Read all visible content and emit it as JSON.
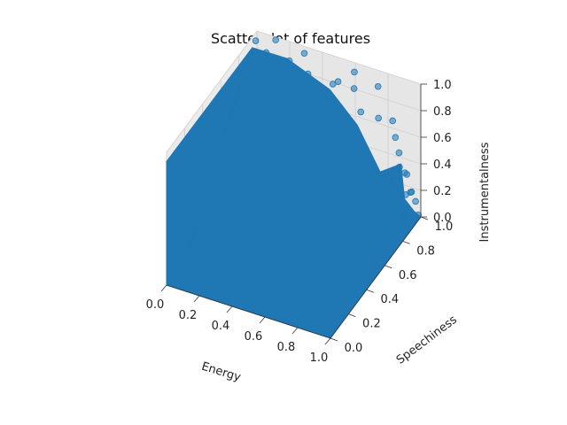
{
  "chart_data": {
    "type": "scatter",
    "projection": "3d",
    "title": "Scatterplot of features",
    "xlabel": "Energy",
    "ylabel": "Speechiness",
    "zlabel": "Instrumentalness",
    "xlim": [
      0,
      1
    ],
    "ylim": [
      0,
      1
    ],
    "zlim": [
      0,
      1
    ],
    "xticks": [
      "0.0",
      "0.2",
      "0.4",
      "0.6",
      "0.8",
      "1.0"
    ],
    "yticks": [
      "0.0",
      "0.2",
      "0.4",
      "0.6",
      "0.8",
      "1.0"
    ],
    "zticks": [
      "0.0",
      "0.2",
      "0.4",
      "0.6",
      "0.8",
      "1.0"
    ],
    "grid": true,
    "marker_color": "#1f77b4",
    "series": [
      {
        "description": "dense cloud of points filling nearly the full unit cube; sparse outliers near high speechiness",
        "points": [
          [
            0.02,
            0.95,
            0.98
          ],
          [
            0.1,
            0.92,
            0.95
          ],
          [
            0.22,
            0.96,
            0.9
          ],
          [
            0.35,
            0.93,
            0.88
          ],
          [
            0.48,
            0.97,
            0.82
          ],
          [
            0.55,
            0.9,
            0.93
          ],
          [
            0.62,
            0.95,
            0.86
          ],
          [
            0.7,
            0.88,
            0.78
          ],
          [
            0.78,
            0.93,
            0.72
          ],
          [
            0.85,
            0.96,
            0.7
          ],
          [
            0.9,
            0.9,
            0.65
          ],
          [
            0.95,
            0.85,
            0.6
          ],
          [
            0.98,
            0.8,
            0.55
          ],
          [
            0.96,
            0.75,
            0.5
          ],
          [
            0.99,
            0.7,
            0.45
          ],
          [
            0.97,
            0.9,
            0.4
          ],
          [
            0.93,
            0.95,
            0.35
          ],
          [
            0.99,
            0.85,
            0.3
          ],
          [
            0.98,
            0.92,
            0.25
          ],
          [
            0.96,
            0.97,
            0.2
          ],
          [
            0.99,
            0.96,
            0.15
          ],
          [
            0.97,
            0.88,
            0.1
          ],
          [
            0.92,
            0.98,
            0.05
          ],
          [
            0.99,
            0.99,
            0.02
          ],
          [
            0.12,
            0.99,
            0.99
          ],
          [
            0.3,
            0.98,
            0.97
          ],
          [
            0.6,
            0.99,
            0.94
          ],
          [
            0.75,
            0.98,
            0.9
          ]
        ]
      }
    ]
  }
}
